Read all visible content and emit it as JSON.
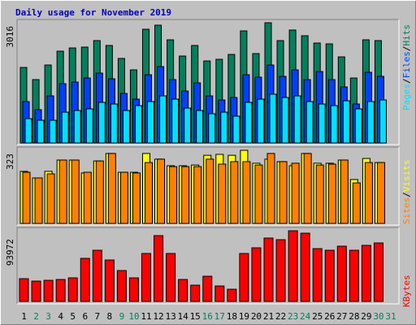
{
  "title": "Daily usage for November 2019",
  "categories": [
    "1",
    "2",
    "3",
    "4",
    "5",
    "6",
    "7",
    "8",
    "9",
    "10",
    "11",
    "12",
    "13",
    "14",
    "15",
    "16",
    "17",
    "18",
    "19",
    "20",
    "21",
    "22",
    "23",
    "24",
    "25",
    "26",
    "27",
    "28",
    "29",
    "30",
    "31"
  ],
  "category_colors": [
    "#000000",
    "#00805c",
    "#00805c",
    "#000000",
    "#000000",
    "#000000",
    "#000000",
    "#000000",
    "#00805c",
    "#00805c",
    "#000000",
    "#000000",
    "#000000",
    "#000000",
    "#000000",
    "#00805c",
    "#00805c",
    "#000000",
    "#000000",
    "#000000",
    "#000000",
    "#000000",
    "#00805c",
    "#00805c",
    "#000000",
    "#000000",
    "#000000",
    "#000000",
    "#000000",
    "#00805c",
    "#00805c"
  ],
  "legend_separator": "/",
  "chart_data": [
    {
      "type": "bar",
      "ylim": [
        0,
        3016
      ],
      "yticks": [
        3016
      ],
      "series": [
        {
          "name": "Hits",
          "color": "#00805c",
          "values": [
            1895,
            1590,
            1956,
            2303,
            2384,
            2405,
            2568,
            2446,
            2120,
            1834,
            2853,
            2955,
            2588,
            2181,
            2446,
            2058,
            2099,
            2221,
            2812,
            2242,
            3016,
            2568,
            2833,
            2690,
            2507,
            2486,
            2160,
            1630,
            2588,
            2568,
            null
          ]
        },
        {
          "name": "Files",
          "color": "#0040ff",
          "values": [
            1039,
            836,
            1182,
            1488,
            1528,
            1630,
            1753,
            1610,
            1243,
            1100,
            1712,
            1916,
            1590,
            1304,
            1508,
            1182,
            1080,
            1141,
            1712,
            1651,
            1956,
            1671,
            1834,
            1590,
            1793,
            1590,
            1406,
            978,
            1773,
            1671,
            null
          ]
        },
        {
          "name": "Pages",
          "color": "#00e0ff",
          "values": [
            611,
            571,
            571,
            774,
            815,
            856,
            1019,
            978,
            815,
            937,
            1039,
            1182,
            1100,
            876,
            815,
            734,
            774,
            673,
            1019,
            1100,
            1223,
            1141,
            1182,
            1039,
            978,
            937,
            1059,
            856,
            1039,
            1080,
            null
          ]
        }
      ]
    },
    {
      "type": "bar",
      "ylim": [
        0,
        323
      ],
      "yticks": [
        323
      ],
      "series": [
        {
          "name": "Visits",
          "color": "#ffff00",
          "values": [
            230,
            201,
            230,
            280,
            280,
            223,
            276,
            309,
            226,
            226,
            309,
            284,
            255,
            255,
            258,
            301,
            305,
            301,
            323,
            266,
            284,
            273,
            255,
            309,
            266,
            266,
            280,
            194,
            287,
            269,
            null
          ]
        },
        {
          "name": "Sites",
          "color": "#ff8000",
          "values": [
            226,
            201,
            219,
            280,
            280,
            226,
            276,
            309,
            226,
            223,
            269,
            284,
            251,
            251,
            251,
            284,
            262,
            273,
            273,
            258,
            309,
            273,
            266,
            309,
            258,
            262,
            280,
            179,
            269,
            269,
            null
          ]
        }
      ]
    },
    {
      "type": "bar",
      "ylim": [
        0,
        93972
      ],
      "yticks": [
        93972
      ],
      "series": [
        {
          "name": "KBytes",
          "color": "#ff0000",
          "values": [
            30240,
            27000,
            28080,
            29160,
            31320,
            57240,
            68040,
            55080,
            41040,
            31320,
            63720,
            87480,
            63720,
            29160,
            21600,
            33480,
            20520,
            16200,
            63720,
            71280,
            84240,
            82080,
            93972,
            90720,
            70200,
            68040,
            73440,
            68040,
            74520,
            77760,
            null
          ]
        }
      ]
    }
  ]
}
